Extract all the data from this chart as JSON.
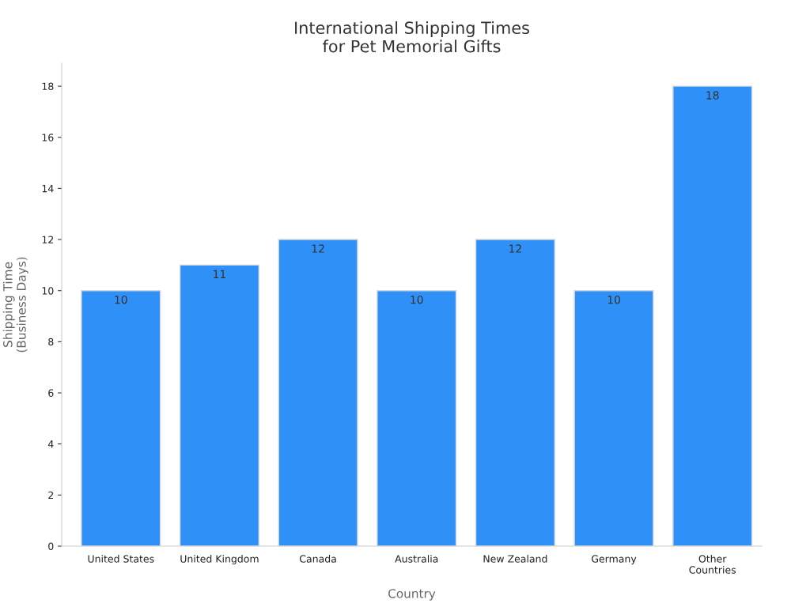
{
  "chart_data": {
    "type": "bar",
    "title": "International Shipping Times\nfor Pet Memorial Gifts",
    "xlabel": "Country",
    "ylabel": "Shipping Time\n(Business Days)",
    "categories": [
      "United States",
      "United Kingdom",
      "Canada",
      "Australia",
      "New Zealand",
      "Germany",
      "Other\nCountries"
    ],
    "values": [
      10,
      11,
      12,
      10,
      12,
      10,
      18
    ],
    "color": "#2f91f7",
    "ylim": [
      0,
      18.9
    ],
    "yticks": [
      0,
      2,
      4,
      6,
      8,
      10,
      12,
      14,
      16,
      18
    ],
    "grid": false,
    "data_labels": true
  }
}
